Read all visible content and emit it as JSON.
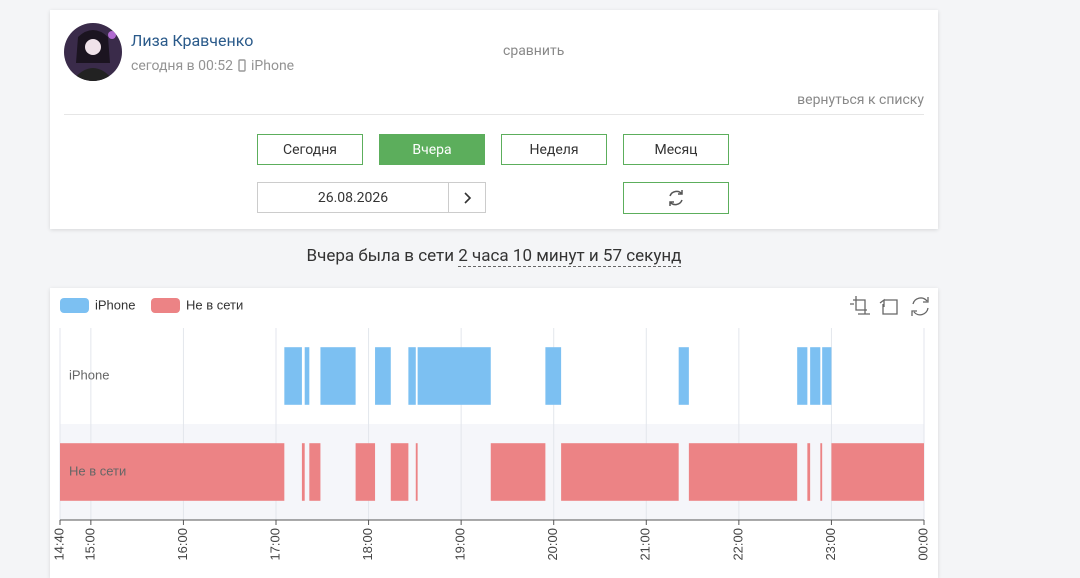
{
  "profile": {
    "name": "Лиза Кравченко",
    "last_seen": "сегодня в 00:52",
    "device": "iPhone",
    "compare": "сравнить",
    "back": "вернуться к списку"
  },
  "periods": [
    "Сегодня",
    "Вчера",
    "Неделя",
    "Месяц"
  ],
  "active_period": 1,
  "date": "26.08.2026",
  "summary": {
    "text": "Вчера была в сети",
    "duration": "2 часа 10 минут и 57 секунд"
  },
  "chart_data": {
    "type": "timeline",
    "xlim": [
      14.6667,
      24
    ],
    "xticks": [
      {
        "value": 14.6667,
        "label": "14:40"
      },
      {
        "value": 15,
        "label": "15:00"
      },
      {
        "value": 16,
        "label": "16:00"
      },
      {
        "value": 17,
        "label": "17:00"
      },
      {
        "value": 18,
        "label": "18:00"
      },
      {
        "value": 19,
        "label": "19:00"
      },
      {
        "value": 20,
        "label": "20:00"
      },
      {
        "value": 21,
        "label": "21:00"
      },
      {
        "value": 22,
        "label": "22:00"
      },
      {
        "value": 23,
        "label": "23:00"
      },
      {
        "value": 24,
        "label": "00:00"
      }
    ],
    "series": [
      {
        "name": "iPhone",
        "color": "#7cc0f2",
        "intervals": [
          [
            17.09,
            17.28
          ],
          [
            17.31,
            17.36
          ],
          [
            17.48,
            17.86
          ],
          [
            18.07,
            18.24
          ],
          [
            18.43,
            18.51
          ],
          [
            18.53,
            19.32
          ],
          [
            19.91,
            20.08
          ],
          [
            21.35,
            21.46
          ],
          [
            22.63,
            22.74
          ],
          [
            22.77,
            22.88
          ],
          [
            22.9,
            23.0
          ]
        ]
      },
      {
        "name": "Не в сети",
        "color": "#ec8385",
        "intervals": [
          [
            14.6667,
            17.09
          ],
          [
            17.28,
            17.31
          ],
          [
            17.36,
            17.48
          ],
          [
            17.86,
            18.07
          ],
          [
            18.24,
            18.43
          ],
          [
            18.51,
            18.53
          ],
          [
            19.32,
            19.91
          ],
          [
            20.08,
            21.35
          ],
          [
            21.46,
            22.63
          ],
          [
            22.74,
            22.77
          ],
          [
            22.88,
            22.9
          ],
          [
            23.0,
            24
          ]
        ]
      }
    ]
  }
}
